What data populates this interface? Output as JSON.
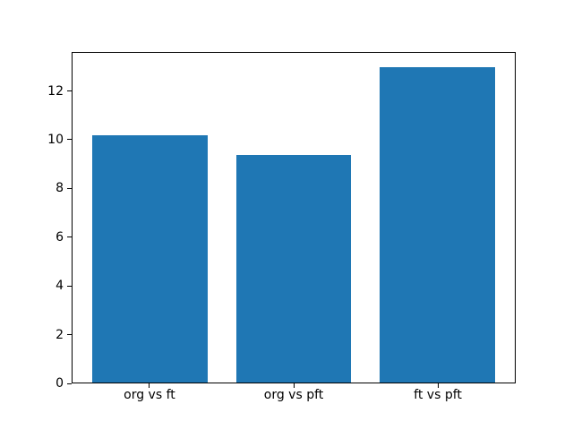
{
  "chart_data": {
    "type": "bar",
    "categories": [
      "org vs ft",
      "org vs pft",
      "ft vs pft"
    ],
    "values": [
      10.2,
      9.4,
      13.0
    ],
    "yticks": [
      0,
      2,
      4,
      6,
      8,
      10,
      12
    ],
    "ylim": [
      0,
      13.6
    ],
    "bar_color": "#1f77b4",
    "bar_width": 0.8,
    "grid": false,
    "legend": "none",
    "background_color": "#ffffff",
    "spine_color": "#000000",
    "text_color": "#000000"
  }
}
